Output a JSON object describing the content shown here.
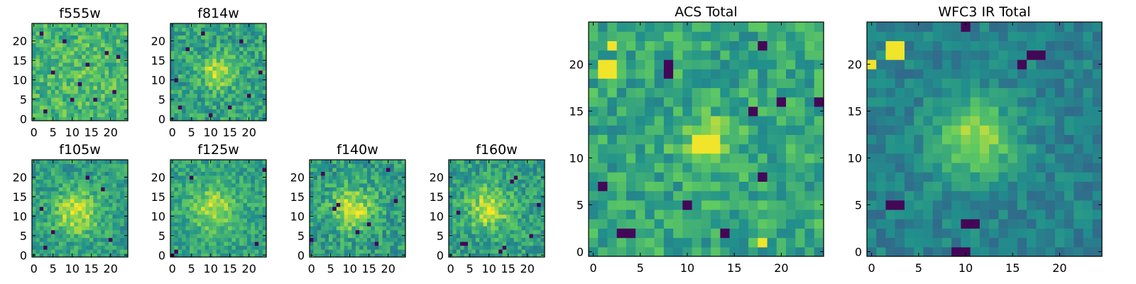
{
  "figure": {
    "background": "#ffffff",
    "colormap": "viridis",
    "colormap_stops": [
      "#440154",
      "#3b528b",
      "#21918c",
      "#5ec962",
      "#fde725"
    ]
  },
  "chart_data": [
    {
      "id": "f555w",
      "type": "heatmap",
      "title": "f555w",
      "grid_size": 25,
      "xlim": [
        -0.5,
        24.5
      ],
      "ylim": [
        -0.5,
        24.5
      ],
      "xticks": [
        0,
        5,
        10,
        15,
        20
      ],
      "yticks": [
        0,
        5,
        10,
        15,
        20
      ],
      "xtick_labels": [
        "0",
        "5",
        "10",
        "15",
        "20"
      ],
      "ytick_labels": [
        "0",
        "5",
        "10",
        "15",
        "20"
      ],
      "center": [
        12,
        12
      ],
      "sigma": 6,
      "peak": 0.05,
      "base": 0.66,
      "noise": 0.17,
      "seed": 11,
      "dark_pixels": [
        [
          3,
          2
        ],
        [
          10,
          5
        ],
        [
          16,
          5
        ],
        [
          21,
          7
        ],
        [
          5,
          12
        ],
        [
          14,
          14
        ],
        [
          19,
          17
        ],
        [
          8,
          20
        ],
        [
          2,
          22
        ],
        [
          22,
          16
        ],
        [
          12,
          9
        ]
      ]
    },
    {
      "id": "f814w",
      "type": "heatmap",
      "title": "f814w",
      "grid_size": 25,
      "xlim": [
        -0.5,
        24.5
      ],
      "ylim": [
        -0.5,
        24.5
      ],
      "xticks": [
        0,
        5,
        10,
        15,
        20
      ],
      "yticks": [
        0,
        5,
        10,
        15,
        20
      ],
      "xtick_labels": [
        "0",
        "5",
        "10",
        "15",
        "20"
      ],
      "ytick_labels": [
        "0",
        "5",
        "10",
        "15",
        "20"
      ],
      "center": [
        12,
        12
      ],
      "sigma": 3,
      "peak": 0.32,
      "base": 0.58,
      "noise": 0.17,
      "seed": 23,
      "dark_pixels": [
        [
          2,
          3
        ],
        [
          4,
          18
        ],
        [
          20,
          6
        ],
        [
          23,
          12
        ],
        [
          8,
          22
        ],
        [
          15,
          3
        ],
        [
          18,
          20
        ],
        [
          1,
          10
        ],
        [
          10,
          1
        ]
      ]
    },
    {
      "id": "f105w",
      "type": "heatmap",
      "title": "f105w",
      "grid_size": 25,
      "xlim": [
        -0.5,
        24.5
      ],
      "ylim": [
        -0.5,
        24.5
      ],
      "xticks": [
        0,
        5,
        10,
        15,
        20
      ],
      "yticks": [
        0,
        5,
        10,
        15,
        20
      ],
      "xtick_labels": [
        "0",
        "5",
        "10",
        "15",
        "20"
      ],
      "ytick_labels": [
        "0",
        "5",
        "10",
        "15",
        "20"
      ],
      "center": [
        11,
        11
      ],
      "sigma": 4,
      "peak": 0.36,
      "base": 0.56,
      "noise": 0.15,
      "seed": 37,
      "dark_pixels": [
        [
          2,
          12
        ],
        [
          5,
          6
        ],
        [
          18,
          17
        ],
        [
          20,
          4
        ],
        [
          3,
          2
        ],
        [
          14,
          20
        ]
      ]
    },
    {
      "id": "f125w",
      "type": "heatmap",
      "title": "f125w",
      "grid_size": 25,
      "xlim": [
        -0.5,
        24.5
      ],
      "ylim": [
        -0.5,
        24.5
      ],
      "xticks": [
        0,
        5,
        10,
        15,
        20
      ],
      "yticks": [
        0,
        5,
        10,
        15,
        20
      ],
      "xtick_labels": [
        "0",
        "5",
        "10",
        "15",
        "20"
      ],
      "ytick_labels": [
        "0",
        "5",
        "10",
        "15",
        "20"
      ],
      "center": [
        11,
        12
      ],
      "sigma": 4,
      "peak": 0.3,
      "base": 0.58,
      "noise": 0.14,
      "seed": 51,
      "dark_pixels": [
        [
          0,
          0
        ],
        [
          1,
          1
        ],
        [
          24,
          22
        ],
        [
          5,
          20
        ],
        [
          22,
          3
        ]
      ]
    },
    {
      "id": "f140w",
      "type": "heatmap",
      "title": "f140w",
      "grid_size": 25,
      "xlim": [
        -0.5,
        24.5
      ],
      "ylim": [
        -0.5,
        24.5
      ],
      "xticks": [
        0,
        5,
        10,
        15,
        20
      ],
      "yticks": [
        0,
        5,
        10,
        15,
        20
      ],
      "xtick_labels": [
        "0",
        "5",
        "10",
        "15",
        "20"
      ],
      "ytick_labels": [
        "0",
        "5",
        "10",
        "15",
        "20"
      ],
      "center": [
        11,
        12
      ],
      "sigma": 4,
      "peak": 0.34,
      "base": 0.55,
      "noise": 0.17,
      "seed": 67,
      "dark_pixels": [
        [
          7,
          13
        ],
        [
          6,
          12
        ],
        [
          0,
          4
        ],
        [
          12,
          6
        ],
        [
          15,
          8
        ],
        [
          17,
          3
        ],
        [
          22,
          14
        ],
        [
          3,
          21
        ],
        [
          20,
          22
        ]
      ]
    },
    {
      "id": "f160w",
      "type": "heatmap",
      "title": "f160w",
      "grid_size": 25,
      "xlim": [
        -0.5,
        24.5
      ],
      "ylim": [
        -0.5,
        24.5
      ],
      "xticks": [
        0,
        5,
        10,
        15,
        20
      ],
      "yticks": [
        0,
        5,
        10,
        15,
        20
      ],
      "xtick_labels": [
        "0",
        "5",
        "10",
        "15",
        "20"
      ],
      "ytick_labels": [
        "0",
        "5",
        "10",
        "15",
        "20"
      ],
      "center": [
        10,
        12
      ],
      "sigma": 4,
      "peak": 0.36,
      "base": 0.55,
      "noise": 0.16,
      "seed": 79,
      "dark_pixels": [
        [
          3,
          3
        ],
        [
          4,
          3
        ],
        [
          14,
          2
        ],
        [
          13,
          1
        ],
        [
          16,
          19
        ],
        [
          17,
          20
        ],
        [
          23,
          13
        ],
        [
          2,
          11
        ],
        [
          21,
          5
        ]
      ]
    },
    {
      "id": "acs-total",
      "type": "heatmap",
      "title": "ACS Total",
      "grid_size": 25,
      "xlim": [
        -0.5,
        24.5
      ],
      "ylim": [
        -0.5,
        24.5
      ],
      "xticks": [
        0,
        5,
        10,
        15,
        20
      ],
      "yticks": [
        0,
        5,
        10,
        15,
        20
      ],
      "xtick_labels": [
        "0",
        "5",
        "10",
        "15",
        "20"
      ],
      "ytick_labels": [
        "0",
        "5",
        "10",
        "15",
        "20"
      ],
      "center": [
        12,
        12
      ],
      "sigma": 2,
      "peak": 0.24,
      "base": 0.6,
      "noise": 0.16,
      "seed": 101,
      "dark_pixels": [
        [
          8,
          19
        ],
        [
          8,
          20
        ],
        [
          18,
          22
        ],
        [
          20,
          16
        ],
        [
          24,
          16
        ],
        [
          18,
          8
        ],
        [
          3,
          2
        ],
        [
          4,
          2
        ],
        [
          14,
          2
        ],
        [
          1,
          7
        ],
        [
          10,
          5
        ],
        [
          17,
          15
        ]
      ],
      "bright_regions": [
        [
          1,
          19,
          2,
          2
        ],
        [
          11,
          11,
          3,
          2
        ],
        [
          2,
          22,
          1,
          1
        ],
        [
          18,
          1,
          1,
          1
        ]
      ]
    },
    {
      "id": "wfc3-ir-total",
      "type": "heatmap",
      "title": "WFC3 IR Total",
      "grid_size": 25,
      "xlim": [
        -0.5,
        24.5
      ],
      "ylim": [
        -0.5,
        24.5
      ],
      "xticks": [
        0,
        5,
        10,
        15,
        20
      ],
      "yticks": [
        0,
        5,
        10,
        15,
        20
      ],
      "xtick_labels": [
        "0",
        "5",
        "10",
        "15",
        "20"
      ],
      "ytick_labels": [
        "0",
        "5",
        "10",
        "15",
        "20"
      ],
      "center": [
        11,
        12
      ],
      "sigma": 3,
      "peak": 0.42,
      "base": 0.44,
      "noise": 0.1,
      "seed": 131,
      "dark_pixels": [
        [
          2,
          5
        ],
        [
          3,
          5
        ],
        [
          17,
          21
        ],
        [
          18,
          21
        ],
        [
          16,
          20
        ],
        [
          9,
          0
        ],
        [
          10,
          0
        ],
        [
          10,
          3
        ],
        [
          11,
          3
        ],
        [
          10,
          24
        ]
      ],
      "bright_regions": [
        [
          2,
          21,
          2,
          2
        ],
        [
          0,
          20,
          1,
          1
        ]
      ]
    }
  ]
}
